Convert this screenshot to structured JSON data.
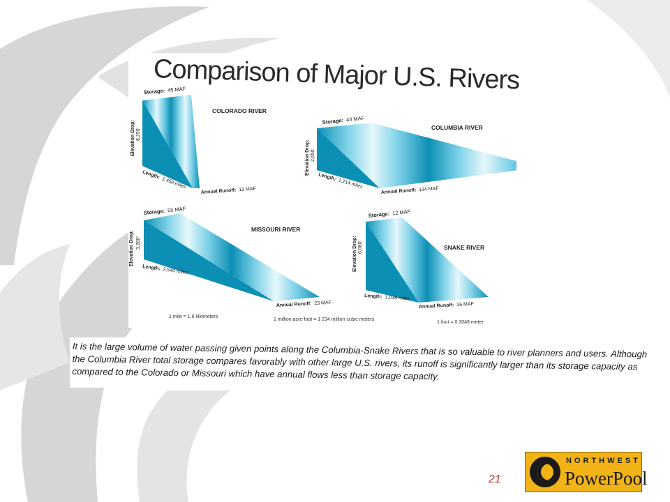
{
  "slide": {
    "title": "Comparison of Major U.S. Rivers",
    "page_number": "21",
    "caption": "It is the large volume of water passing given points along the Columbia-Snake Rivers that is so valuable to river planners and users. Although the Columbia River total storage compares favorably with other large U.S. rivers, its runoff is significantly larger than its storage capacity as compared to the Colorado or Missouri which have annual flows less than storage capacity.",
    "logo": {
      "top": "NORTHWEST",
      "bottom": "PowerPool",
      "color": "#f2b316"
    }
  },
  "colors": {
    "water_dark": "#0c8fb5",
    "water_light": "#c8eef7",
    "text": "#2a2a2a"
  },
  "labels": {
    "storage": "Storage:",
    "elevation_drop": "Elevation Drop:",
    "length": "Length:",
    "annual_runoff": "Annual Runoff:"
  },
  "rivers": [
    {
      "name": "COLORADO RIVER",
      "storage": "45 MAF",
      "elevation_drop": "8,290'",
      "length": "1,450 miles",
      "annual_runoff": "12 MAF"
    },
    {
      "name": "COLUMBIA RIVER",
      "storage": "43 MAF",
      "elevation_drop": "2,650'",
      "length": "1,214 miles",
      "annual_runoff": "134 MAF"
    },
    {
      "name": "MISSOURI RIVER",
      "storage": "55 MAF",
      "elevation_drop": "3,200'",
      "length": "2,540 miles",
      "annual_runoff": "23 MAF"
    },
    {
      "name": "SNAKE RIVER",
      "storage": "12 MAF",
      "elevation_drop": "6,080'",
      "length": "1,038 miles",
      "annual_runoff": "36 MAF"
    }
  ],
  "conversions": {
    "mile": "1 mile = 1.6 kilometers",
    "acre_foot": "1 million acre-foot = 1 234 million cubic meters",
    "foot": "1 foot = 0.3048 meter"
  }
}
